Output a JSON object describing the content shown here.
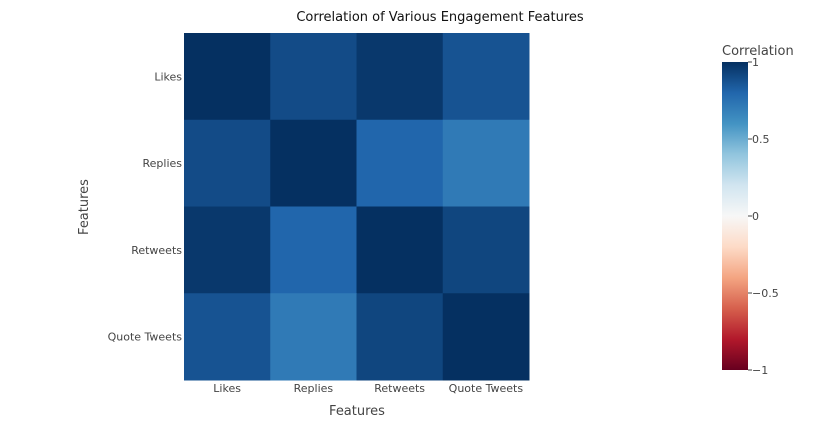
{
  "chart_data": {
    "type": "heatmap",
    "title": "Correlation of Various Engagement Features",
    "xlabel": "Features",
    "ylabel": "Features",
    "x": [
      "Likes",
      "Replies",
      "Retweets",
      "Quote Tweets"
    ],
    "y": [
      "Likes",
      "Replies",
      "Retweets",
      "Quote Tweets"
    ],
    "z": [
      [
        1.0,
        0.9,
        0.97,
        0.87
      ],
      [
        0.9,
        1.0,
        0.8,
        0.71
      ],
      [
        0.97,
        0.8,
        1.0,
        0.92
      ],
      [
        0.87,
        0.71,
        0.92,
        1.0
      ]
    ],
    "zmin": -1,
    "zmax": 1,
    "colorscale": "RdBu",
    "colorbar": {
      "title": "Correlation",
      "tickvals": [
        1,
        0.5,
        0,
        -0.5,
        -1
      ],
      "ticktext": [
        "1",
        "0.5",
        "0",
        "−0.5",
        "−1"
      ]
    },
    "colors": [
      "#67001f",
      "#b2182b",
      "#d6604d",
      "#f4a582",
      "#fddbc7",
      "#f7f7f7",
      "#d1e5f0",
      "#92c5de",
      "#4393c3",
      "#2166ac",
      "#053061"
    ]
  }
}
